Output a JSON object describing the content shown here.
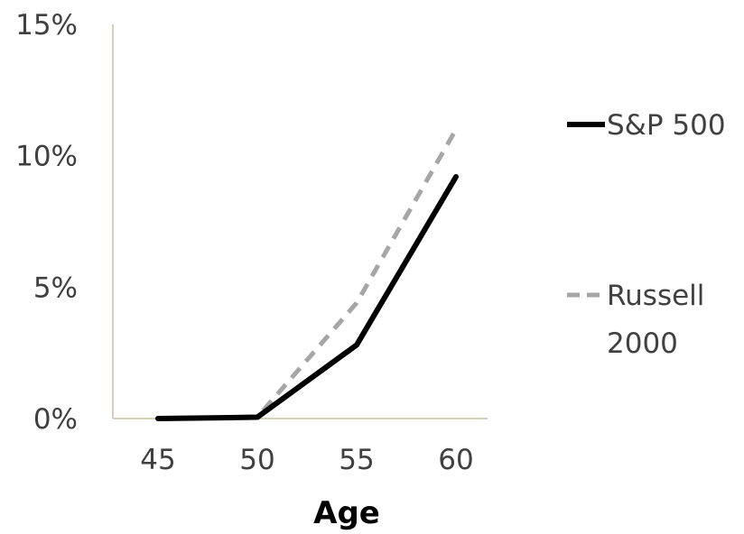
{
  "chart_data": {
    "type": "line",
    "title": "",
    "xlabel": "Age",
    "ylabel": "",
    "x": [
      45,
      50,
      55,
      60
    ],
    "x_tick_labels": [
      "45",
      "50",
      "55",
      "60"
    ],
    "y_tick_labels": [
      "0%",
      "5%",
      "10%",
      "15%"
    ],
    "y_ticks": [
      0,
      5,
      10,
      15
    ],
    "ylim": [
      0,
      15
    ],
    "y_unit": "%",
    "grid": false,
    "legend_position": "right",
    "series": [
      {
        "name": "S&P 500",
        "values": [
          0.0,
          0.05,
          2.8,
          9.2
        ],
        "color": "#000000",
        "style": "solid"
      },
      {
        "name": "Russell 2000",
        "values": [
          0.0,
          0.05,
          4.4,
          11.0
        ],
        "color": "#a6a6a6",
        "style": "dashed"
      }
    ],
    "legend": [
      {
        "lines": [
          "S&P 500"
        ]
      },
      {
        "lines": [
          "Russell",
          "2000"
        ]
      }
    ],
    "axis_color": "#d9ceb8"
  }
}
